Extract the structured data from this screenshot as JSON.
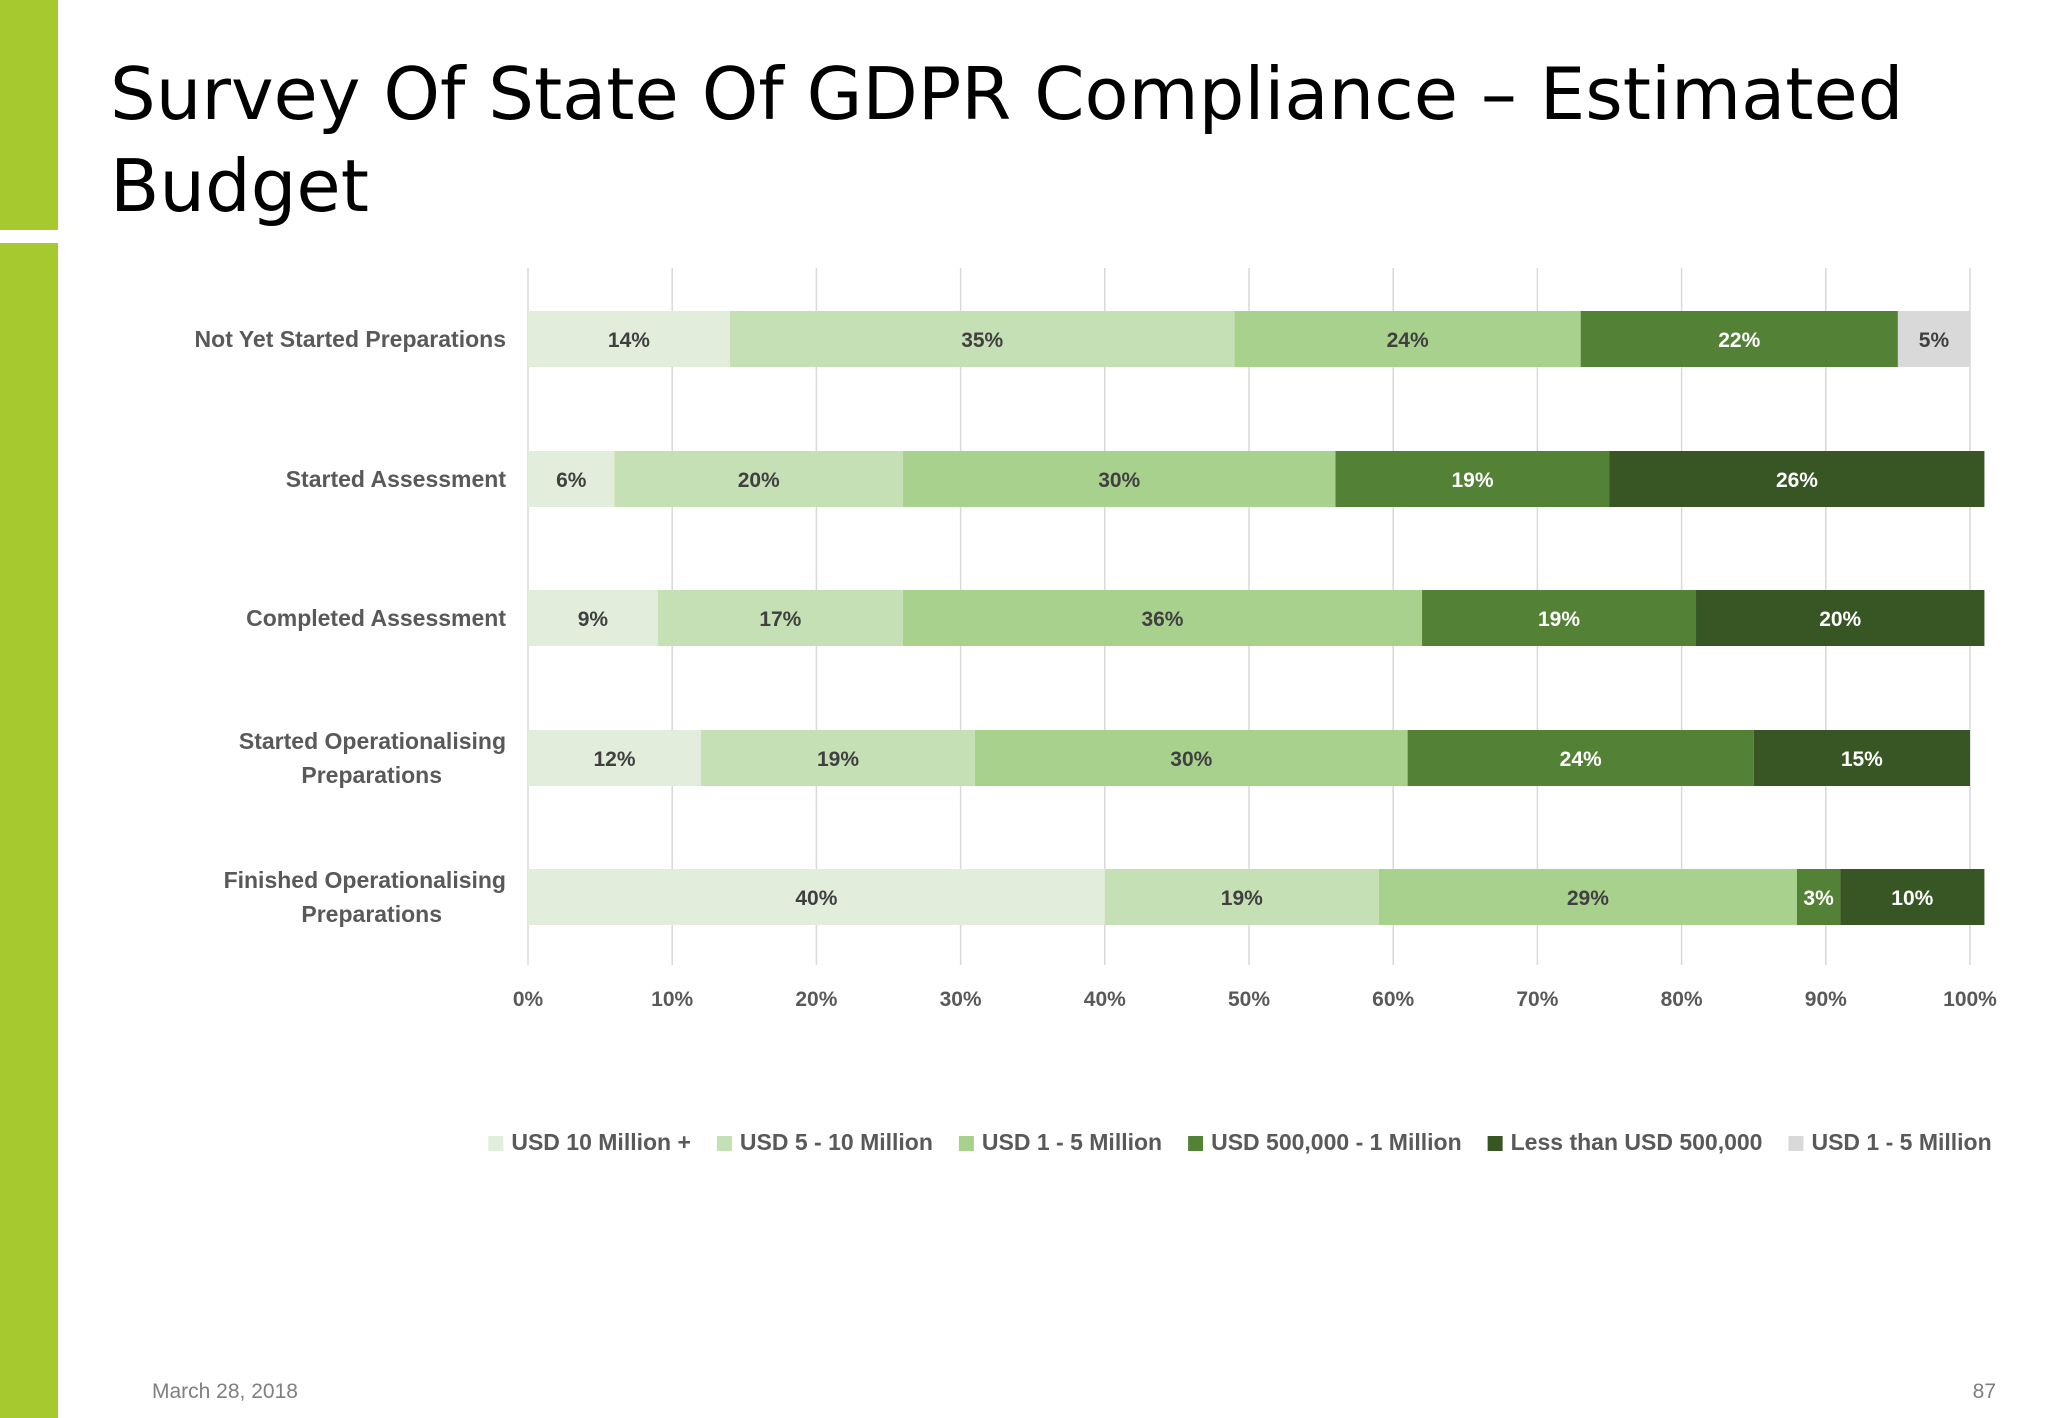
{
  "slide": {
    "title": "Survey Of State Of GDPR Compliance – Estimated Budget",
    "date": "March 28, 2018",
    "page_number": "87",
    "accent_color": "#a6c92f"
  },
  "chart_data": {
    "type": "bar",
    "orientation": "horizontal",
    "stacked": "percent",
    "title": "",
    "xlabel": "",
    "ylabel": "",
    "xlim": [
      0,
      100
    ],
    "x_ticks": [
      "0%",
      "10%",
      "20%",
      "30%",
      "40%",
      "50%",
      "60%",
      "70%",
      "80%",
      "90%",
      "100%"
    ],
    "grid": true,
    "legend_position": "bottom",
    "categories": [
      "Not Yet Started Preparations",
      "Started Assessment",
      "Completed Assessment",
      "Started Operationalising Preparations",
      "Finished Operationalising Preparations"
    ],
    "series": [
      {
        "name": "USD 10 Million +",
        "color": "#e2eedb",
        "label_color": "#404040",
        "values": [
          14,
          6,
          9,
          12,
          40
        ]
      },
      {
        "name": "USD 5 - 10 Million",
        "color": "#c5e0b4",
        "label_color": "#404040",
        "values": [
          35,
          20,
          17,
          19,
          19
        ]
      },
      {
        "name": "USD 1 - 5 Million",
        "color": "#a9d18e",
        "label_color": "#404040",
        "values": [
          24,
          30,
          36,
          30,
          29
        ]
      },
      {
        "name": "USD 500,000 - 1 Million",
        "color": "#538135",
        "label_color": "#ffffff",
        "values": [
          22,
          19,
          19,
          24,
          3
        ]
      },
      {
        "name": "Less than USD 500,000",
        "color": "#375623",
        "label_color": "#ffffff",
        "values": [
          0,
          26,
          20,
          15,
          10
        ]
      },
      {
        "name": "USD 1 - 5 Million",
        "color": "#d9d9d9",
        "label_color": "#404040",
        "values": [
          5,
          0,
          0,
          0,
          0
        ]
      }
    ]
  }
}
